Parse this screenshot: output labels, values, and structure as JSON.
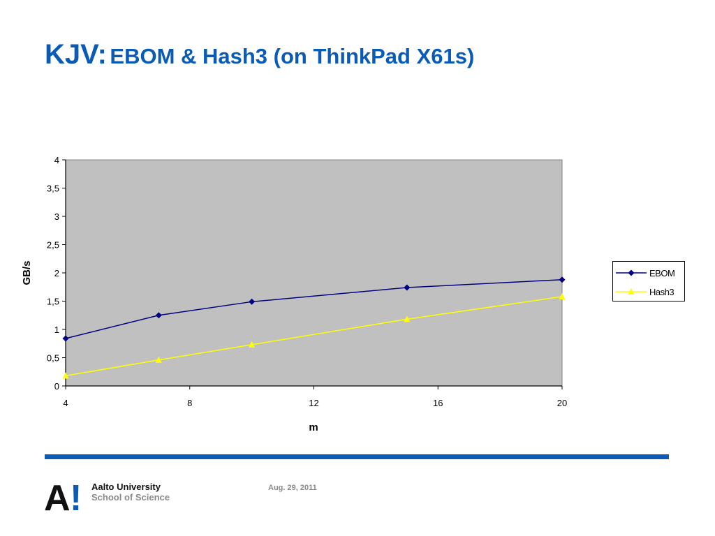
{
  "slide": {
    "title_main": "KJV:",
    "title_rest": "EBOM & Hash3 (on ThinkPad X61s)",
    "date": "Aug. 29, 2011",
    "brand_line1": "Aalto University",
    "brand_line2": "School of Science",
    "logo_glyph": "A",
    "logo_mark": "!",
    "accent_color": "#0a5bb5"
  },
  "chart_data": {
    "type": "line",
    "title": "",
    "xlabel": "m",
    "ylabel": "GB/s",
    "xlim": [
      4,
      20
    ],
    "ylim": [
      0,
      4
    ],
    "x_ticks": [
      "4",
      "8",
      "12",
      "16",
      "20"
    ],
    "x_tick_values": [
      4,
      8,
      12,
      16,
      20
    ],
    "y_ticks": [
      "0",
      "0,5",
      "1",
      "1,5",
      "2",
      "2,5",
      "3",
      "3,5",
      "4"
    ],
    "y_tick_values": [
      0,
      0.5,
      1,
      1.5,
      2,
      2.5,
      3,
      3.5,
      4
    ],
    "grid": false,
    "plot_background": "#c0c0c0",
    "legend_position": "right",
    "series": [
      {
        "name": "EBOM",
        "color": "#000080",
        "marker": "diamond",
        "x": [
          4,
          7,
          10,
          15,
          20
        ],
        "y": [
          0.84,
          1.25,
          1.49,
          1.74,
          1.88
        ]
      },
      {
        "name": "Hash3",
        "color": "#ffff00",
        "marker": "triangle",
        "x": [
          4,
          7,
          10,
          15,
          20
        ],
        "y": [
          0.18,
          0.46,
          0.73,
          1.18,
          1.58
        ]
      }
    ]
  }
}
